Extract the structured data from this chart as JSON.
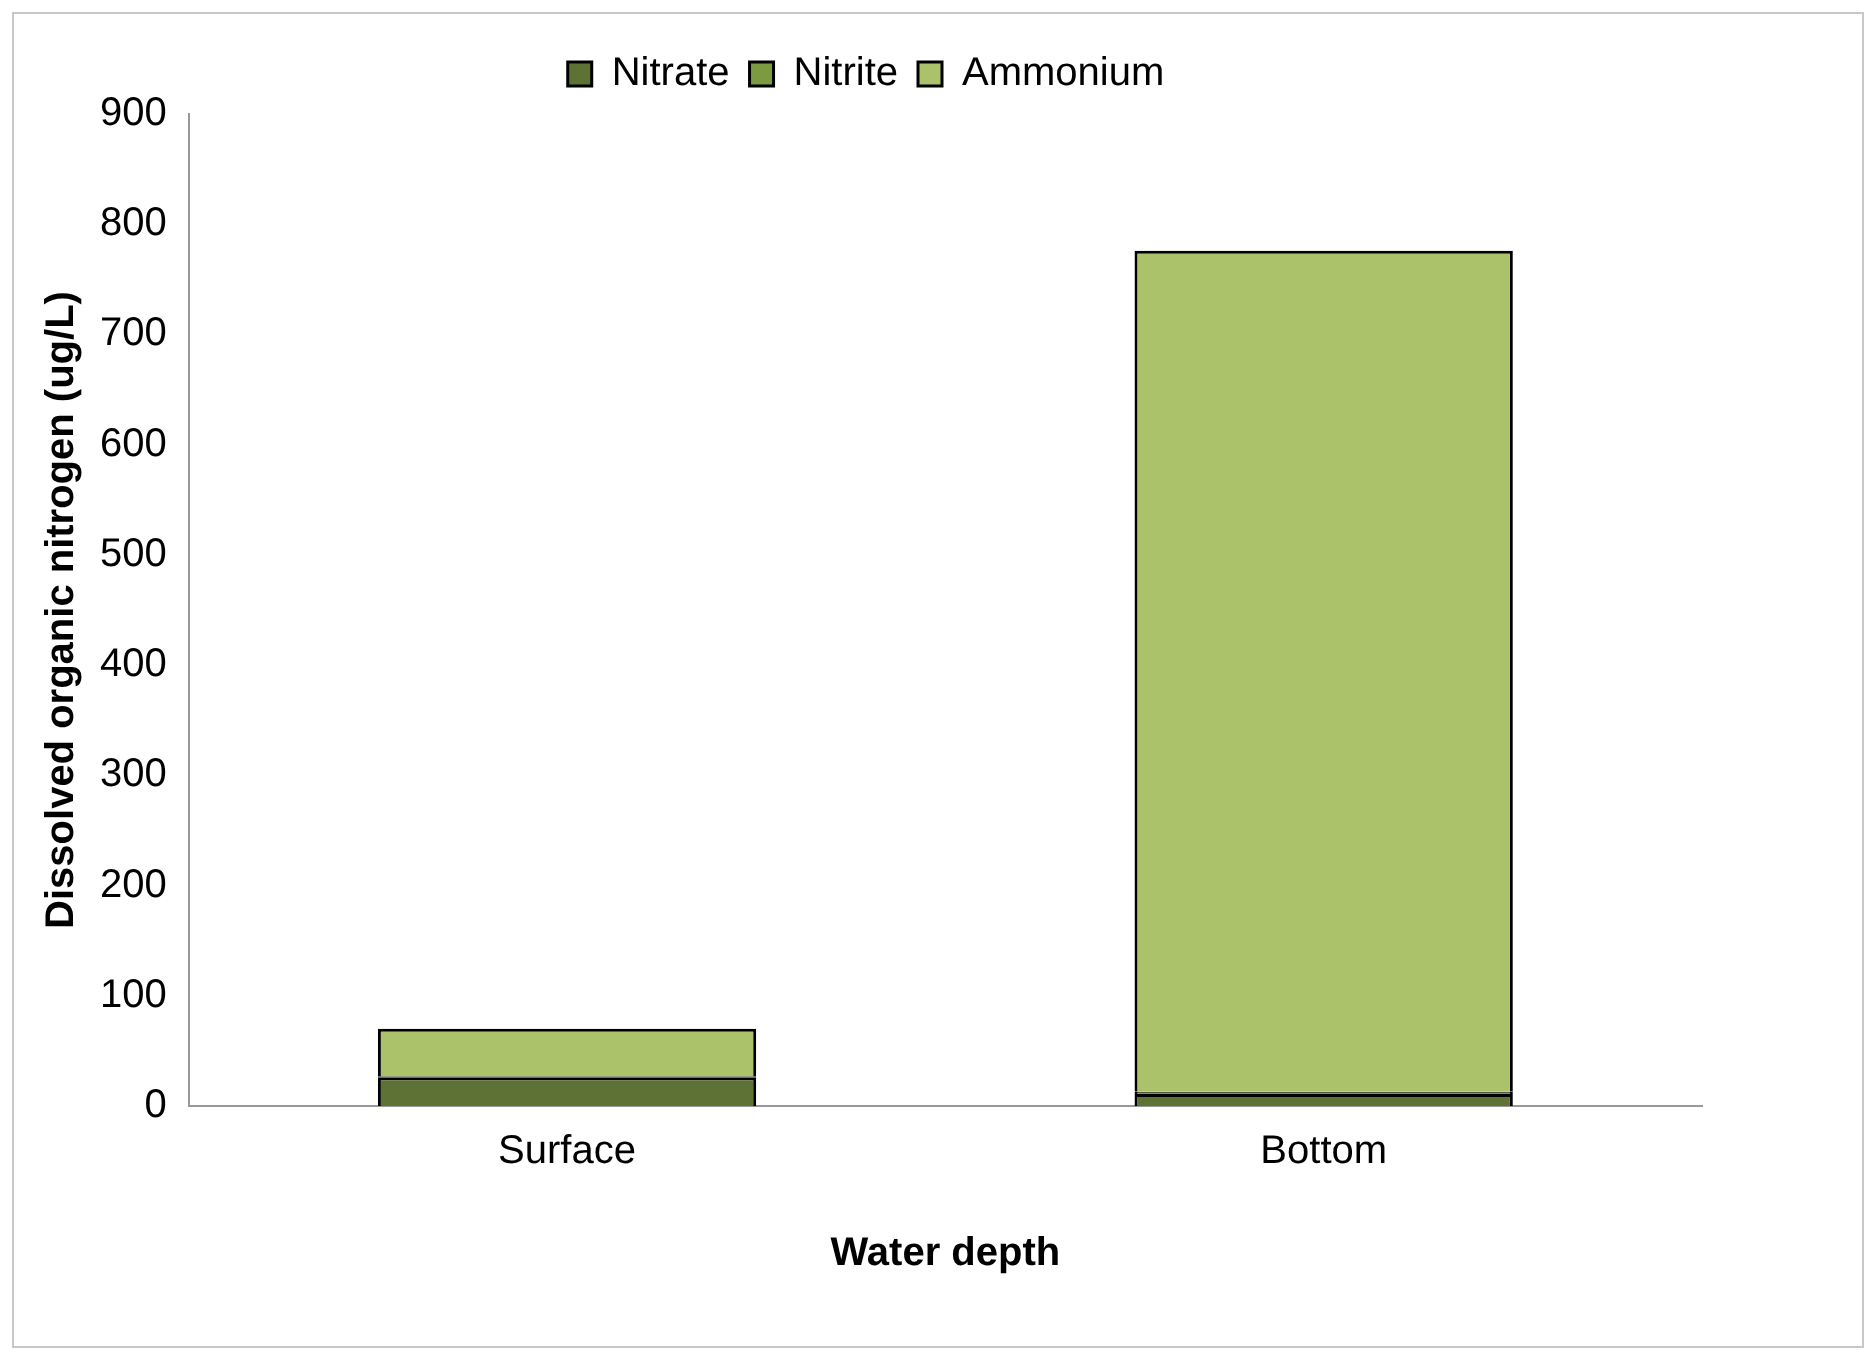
{
  "chart_data": {
    "type": "bar",
    "stacked": true,
    "xlabel": "Water depth",
    "ylabel": "Dissolved organic nitrogen (ug/L)",
    "categories": [
      "Surface",
      "Bottom"
    ],
    "series": [
      {
        "name": "Nitrate",
        "color": "#5f7236",
        "values": [
          26,
          11
        ]
      },
      {
        "name": "Nitrite",
        "color": "#7c9a3f",
        "values": [
          1,
          2
        ]
      },
      {
        "name": "Ammonium",
        "color": "#abc26a",
        "values": [
          43,
          763
        ]
      }
    ],
    "ylim": [
      0,
      900
    ],
    "yticks": [
      0,
      100,
      200,
      300,
      400,
      500,
      600,
      700,
      800,
      900
    ],
    "grid": false,
    "legend": "top"
  }
}
